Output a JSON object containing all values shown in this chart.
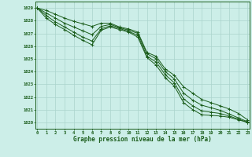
{
  "title": "Graphe pression niveau de la mer (hPa)",
  "bg_color": "#cceee8",
  "grid_color": "#aad4cc",
  "line_color": "#1a5c1a",
  "ylim": [
    1019.5,
    1029.5
  ],
  "xlim": [
    -0.2,
    23.2
  ],
  "yticks": [
    1020,
    1021,
    1022,
    1023,
    1024,
    1025,
    1026,
    1027,
    1028,
    1029
  ],
  "xticks": [
    0,
    1,
    2,
    3,
    4,
    5,
    6,
    7,
    8,
    9,
    10,
    11,
    12,
    13,
    14,
    15,
    16,
    17,
    18,
    19,
    20,
    21,
    22,
    23
  ],
  "series": [
    [
      1029.0,
      1028.8,
      1028.5,
      1028.2,
      1027.95,
      1027.75,
      1027.55,
      1027.8,
      1027.8,
      1027.5,
      1027.35,
      1027.1,
      1025.5,
      1025.2,
      1024.2,
      1023.7,
      1022.8,
      1022.3,
      1021.8,
      1021.55,
      1021.3,
      1021.05,
      1020.7,
      1020.2
    ],
    [
      1029.0,
      1028.6,
      1028.2,
      1027.8,
      1027.5,
      1027.2,
      1026.9,
      1027.55,
      1027.7,
      1027.45,
      1027.25,
      1027.0,
      1025.4,
      1025.0,
      1024.0,
      1023.4,
      1022.3,
      1021.75,
      1021.35,
      1021.15,
      1020.95,
      1020.65,
      1020.35,
      1020.05
    ],
    [
      1029.0,
      1028.4,
      1027.9,
      1027.5,
      1027.1,
      1026.7,
      1026.4,
      1027.35,
      1027.6,
      1027.38,
      1027.15,
      1026.85,
      1025.2,
      1024.75,
      1023.75,
      1023.1,
      1021.85,
      1021.3,
      1020.9,
      1020.8,
      1020.7,
      1020.5,
      1020.25,
      1020.0
    ],
    [
      1029.0,
      1028.2,
      1027.7,
      1027.3,
      1026.85,
      1026.45,
      1026.1,
      1027.25,
      1027.5,
      1027.3,
      1027.1,
      1026.7,
      1025.1,
      1024.5,
      1023.5,
      1022.85,
      1021.55,
      1021.0,
      1020.6,
      1020.55,
      1020.5,
      1020.4,
      1020.2,
      1020.0
    ]
  ]
}
